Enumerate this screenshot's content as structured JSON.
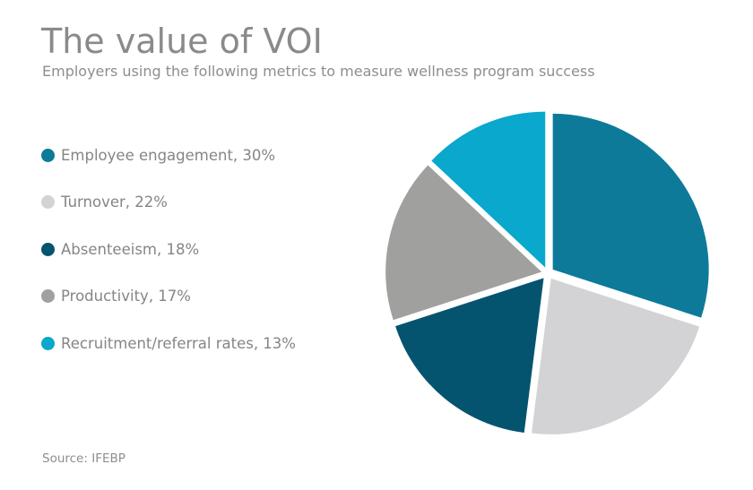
{
  "chart_data": {
    "type": "pie",
    "title": "The value of VOI",
    "subtitle": "Employers using the following metrics to measure wellness program success",
    "source": "Source: IFEBP",
    "legend_position": "left",
    "slices": [
      {
        "name": "Employee engagement",
        "value": 30,
        "label": "Employee engagement, 30%",
        "color": "#0d7a99"
      },
      {
        "name": "Turnover",
        "value": 22,
        "label": "Turnover, 22%",
        "color": "#d3d2d4"
      },
      {
        "name": "Absenteeism",
        "value": 18,
        "label": "Absenteeism, 18%",
        "color": "#045470"
      },
      {
        "name": "Productivity",
        "value": 17,
        "label": "Productivity, 17%",
        "color": "#a0a09f"
      },
      {
        "name": "Recruitment/referral rates",
        "value": 13,
        "label": "Recruitment/referral rates, 13%",
        "color": "#09a8cc"
      }
    ]
  }
}
